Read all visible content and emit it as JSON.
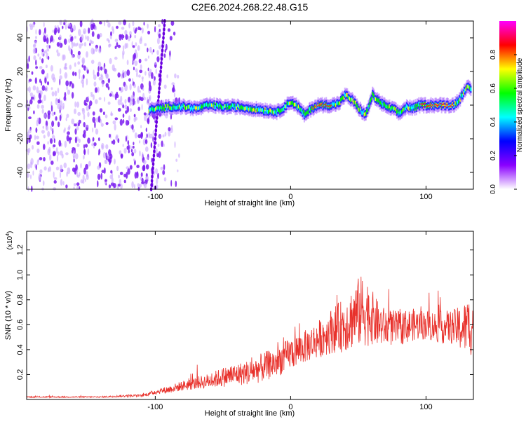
{
  "page_title": "C2E6.2024.268.22.48.G15",
  "colors": {
    "accent": "#e8302a",
    "text": "#000000"
  },
  "chart_data": [
    {
      "type": "heatmap",
      "title": "C2E6.2024.268.22.48.G15",
      "xlabel": "Height of straight line (km)",
      "ylabel": "Frequency (Hz)",
      "xlim": [
        -195,
        135
      ],
      "ylim": [
        -50,
        50
      ],
      "x_ticks": [
        -100,
        0,
        100
      ],
      "x_tick_labels": [
        "-100",
        "0",
        "100"
      ],
      "y_ticks": [
        -40,
        -20,
        0,
        20,
        40
      ],
      "y_tick_labels": [
        "-40",
        "-20",
        "0",
        "20",
        "40"
      ],
      "colorbar": {
        "label": "Normalized spectral amplitude",
        "range": [
          0.0,
          1.0
        ],
        "ticks": [
          0.0,
          0.2,
          0.4,
          0.6,
          0.8
        ],
        "tick_labels": [
          "0.0",
          "0.2",
          "0.4",
          "0.6",
          "0.8"
        ],
        "colormap": [
          "#ffffff",
          "#8a00ff",
          "#0000ff",
          "#00ffff",
          "#00ff00",
          "#ffff00",
          "#ff0000",
          "#ff00ff"
        ]
      },
      "ridge": {
        "x": [
          -105,
          -90,
          -80,
          -70,
          -60,
          -50,
          -40,
          -30,
          -20,
          -10,
          0,
          5,
          10,
          15,
          20,
          25,
          30,
          35,
          40,
          45,
          50,
          55,
          60,
          65,
          70,
          75,
          80,
          85,
          90,
          95,
          100,
          105,
          110,
          115,
          120,
          125,
          130,
          133
        ],
        "y": [
          -3,
          -1,
          -1,
          -2,
          0,
          -1,
          -1,
          -2,
          -3,
          -4,
          2,
          -1,
          -6,
          -2,
          0,
          0,
          0,
          1,
          6,
          3,
          -2,
          -6,
          6,
          2,
          -1,
          -2,
          -5,
          -1,
          -2,
          0,
          0,
          0,
          0,
          0,
          0,
          4,
          12,
          8
        ],
        "peak_value": 1.0
      },
      "noise_region": {
        "x_start": -195,
        "x_end": -82,
        "level": 0.15
      },
      "sloped_artifact": {
        "x_top": -93,
        "x_bottom": -103
      }
    },
    {
      "type": "line",
      "xlabel": "Height of straight line (km)",
      "ylabel": "SNR (10 * v/v)",
      "y_multiplier": "(x10^4)",
      "y_multiplier_base": "(x10",
      "y_multiplier_exp": "4",
      "y_multiplier_close": ")",
      "xlim": [
        -195,
        135
      ],
      "ylim": [
        0,
        1.35
      ],
      "x_ticks": [
        -100,
        0,
        100
      ],
      "x_tick_labels": [
        "-100",
        "0",
        "100"
      ],
      "y_ticks": [
        0.2,
        0.4,
        0.6,
        0.8,
        1.0,
        1.2
      ],
      "y_tick_labels": [
        "0.2",
        "0.4",
        "0.6",
        "0.8",
        "1.0",
        "1.2"
      ],
      "series": [
        {
          "color": "#e8302a",
          "x": [
            -195,
            -180,
            -160,
            -140,
            -120,
            -110,
            -100,
            -90,
            -80,
            -70,
            -60,
            -50,
            -40,
            -30,
            -20,
            -10,
            0,
            10,
            20,
            30,
            40,
            45,
            50,
            55,
            60,
            65,
            70,
            80,
            90,
            100,
            110,
            120,
            125,
            130,
            133
          ],
          "y": [
            0.02,
            0.02,
            0.02,
            0.02,
            0.03,
            0.03,
            0.06,
            0.08,
            0.11,
            0.13,
            0.15,
            0.18,
            0.2,
            0.22,
            0.26,
            0.3,
            0.37,
            0.42,
            0.48,
            0.55,
            0.6,
            0.65,
            0.7,
            0.72,
            0.66,
            0.6,
            0.58,
            0.57,
            0.6,
            0.6,
            0.58,
            0.58,
            0.57,
            0.58,
            0.6
          ],
          "spread": [
            0.005,
            0.005,
            0.005,
            0.005,
            0.01,
            0.01,
            0.02,
            0.03,
            0.04,
            0.05,
            0.06,
            0.08,
            0.09,
            0.1,
            0.12,
            0.12,
            0.13,
            0.13,
            0.15,
            0.18,
            0.22,
            0.25,
            0.28,
            0.3,
            0.22,
            0.18,
            0.15,
            0.14,
            0.13,
            0.12,
            0.13,
            0.14,
            0.18,
            0.22,
            0.25
          ]
        }
      ]
    }
  ]
}
